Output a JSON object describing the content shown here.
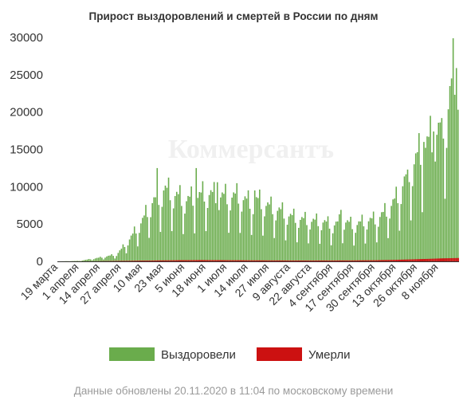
{
  "header": {
    "title": "Прирост выздоровлений и смертей в России по дням"
  },
  "watermark": "Коммерсантъ",
  "footer": {
    "note": "Данные обновлены 20.11.2020 в 11:04 по московскому времени"
  },
  "colors": {
    "recovered": "#6aac4c",
    "deaths": "#cc1111",
    "axis": "#333333"
  },
  "chart_data": {
    "type": "bar",
    "stacked": true,
    "title": "Прирост выздоровлений и смертей в России по дням",
    "xlabel": "",
    "ylabel": "",
    "ylim": [
      0,
      30000
    ],
    "yticks": [
      0,
      5000,
      10000,
      15000,
      20000,
      25000,
      30000
    ],
    "x_start": "2020-03-19",
    "x_end": "2020-11-20",
    "x_tick_labels": [
      "19 марта",
      "1 апреля",
      "14 апреля",
      "27 апреля",
      "10 мая",
      "23 мая",
      "5 июня",
      "18 июня",
      "1 июля",
      "14 июля",
      "27 июля",
      "9 августа",
      "22 августа",
      "4 сентября",
      "17 сентября",
      "30 сентября",
      "13 октября",
      "26 октября",
      "8 ноября"
    ],
    "legend": {
      "position": "bottom",
      "entries": [
        "Выздоровели",
        "Умерли"
      ]
    },
    "series": [
      {
        "name": "Выздоровели",
        "color": "#6aac4c",
        "shape_points": [
          [
            "2020-03-19",
            0
          ],
          [
            "2020-04-01",
            60
          ],
          [
            "2020-04-14",
            500
          ],
          [
            "2020-04-24",
            900
          ],
          [
            "2020-04-27",
            1600
          ],
          [
            "2020-05-03",
            3200
          ],
          [
            "2020-05-10",
            5400
          ],
          [
            "2020-05-16",
            7800
          ],
          [
            "2020-05-20",
            8400
          ],
          [
            "2020-05-23",
            9500
          ],
          [
            "2020-05-28",
            9000
          ],
          [
            "2020-06-05",
            8000
          ],
          [
            "2020-06-12",
            8400
          ],
          [
            "2020-06-18",
            9000
          ],
          [
            "2020-06-25",
            8600
          ],
          [
            "2020-07-01",
            8500
          ],
          [
            "2020-07-08",
            8600
          ],
          [
            "2020-07-14",
            7800
          ],
          [
            "2020-07-20",
            8000
          ],
          [
            "2020-07-27",
            7200
          ],
          [
            "2020-08-03",
            6600
          ],
          [
            "2020-08-09",
            5900
          ],
          [
            "2020-08-16",
            5500
          ],
          [
            "2020-08-22",
            5300
          ],
          [
            "2020-08-29",
            5200
          ],
          [
            "2020-09-04",
            4700
          ],
          [
            "2020-09-10",
            5400
          ],
          [
            "2020-09-17",
            4700
          ],
          [
            "2020-09-24",
            5300
          ],
          [
            "2020-09-30",
            5500
          ],
          [
            "2020-10-06",
            6400
          ],
          [
            "2020-10-13",
            8200
          ],
          [
            "2020-10-19",
            11000
          ],
          [
            "2020-10-26",
            13800
          ],
          [
            "2020-11-01",
            15500
          ],
          [
            "2020-11-08",
            17200
          ],
          [
            "2020-11-13",
            19000
          ],
          [
            "2020-11-17",
            24500
          ],
          [
            "2020-11-20",
            25400
          ]
        ],
        "peaks": [
          [
            "2020-05-19",
            12500
          ],
          [
            "2020-06-12",
            12500
          ],
          [
            "2020-06-25",
            10600
          ],
          [
            "2020-07-18",
            9500
          ],
          [
            "2020-09-09",
            6900
          ],
          [
            "2020-10-20",
            12300
          ],
          [
            "2020-10-30",
            16000
          ],
          [
            "2020-11-05",
            17400
          ],
          [
            "2020-11-10",
            19200
          ],
          [
            "2020-11-19",
            25900
          ]
        ]
      },
      {
        "name": "Умерли",
        "color": "#cc1111",
        "shape_points": [
          [
            "2020-03-19",
            0
          ],
          [
            "2020-04-10",
            10
          ],
          [
            "2020-04-27",
            60
          ],
          [
            "2020-05-15",
            110
          ],
          [
            "2020-06-01",
            150
          ],
          [
            "2020-06-15",
            170
          ],
          [
            "2020-07-01",
            150
          ],
          [
            "2020-07-20",
            130
          ],
          [
            "2020-08-15",
            110
          ],
          [
            "2020-09-15",
            120
          ],
          [
            "2020-10-01",
            150
          ],
          [
            "2020-10-15",
            220
          ],
          [
            "2020-11-01",
            330
          ],
          [
            "2020-11-10",
            400
          ],
          [
            "2020-11-20",
            450
          ]
        ]
      }
    ]
  }
}
